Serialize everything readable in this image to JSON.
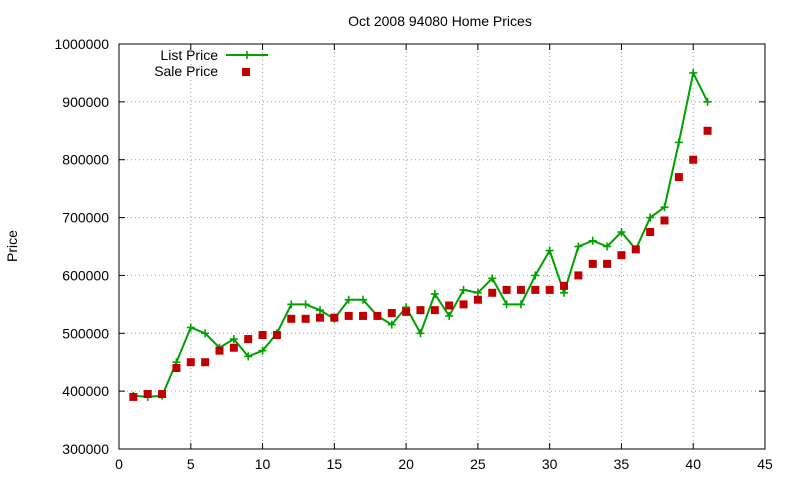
{
  "chart_data": {
    "type": "line",
    "title": "Oct 2008 94080 Home Prices",
    "xlabel": "",
    "ylabel": "Price",
    "xlim": [
      0,
      45
    ],
    "ylim": [
      300000,
      1000000
    ],
    "xticks": [
      0,
      5,
      10,
      15,
      20,
      25,
      30,
      35,
      40,
      45
    ],
    "yticks": [
      300000,
      400000,
      500000,
      600000,
      700000,
      800000,
      900000,
      1000000
    ],
    "grid": true,
    "legend_position": "top-left",
    "x": [
      1,
      2,
      3,
      4,
      5,
      6,
      7,
      8,
      9,
      10,
      11,
      12,
      13,
      14,
      15,
      16,
      17,
      18,
      19,
      20,
      21,
      22,
      23,
      24,
      25,
      26,
      27,
      28,
      29,
      30,
      31,
      32,
      33,
      34,
      35,
      36,
      37,
      38,
      39,
      40,
      41
    ],
    "series": [
      {
        "name": "List Price",
        "style": "linespoints",
        "marker": "plus",
        "color": "#00a000",
        "values": [
          392000,
          390000,
          392000,
          450000,
          510000,
          500000,
          475000,
          490000,
          460000,
          470000,
          500000,
          550000,
          550000,
          540000,
          525000,
          558000,
          558000,
          530000,
          515000,
          545000,
          500000,
          568000,
          530000,
          575000,
          570000,
          595000,
          550000,
          550000,
          600000,
          643000,
          570000,
          650000,
          660000,
          650000,
          675000,
          645000,
          700000,
          718000,
          830000,
          950000,
          900000
        ]
      },
      {
        "name": "Sale Price",
        "style": "points",
        "marker": "square",
        "color": "#c00000",
        "values": [
          390000,
          395000,
          395000,
          440000,
          450000,
          450000,
          470000,
          475000,
          490000,
          497000,
          497000,
          525000,
          525000,
          527000,
          527000,
          530000,
          530000,
          530000,
          535000,
          537000,
          540000,
          540000,
          548000,
          550000,
          558000,
          570000,
          575000,
          575000,
          575000,
          575000,
          582000,
          600000,
          620000,
          620000,
          635000,
          645000,
          675000,
          695000,
          770000,
          800000,
          850000
        ]
      }
    ]
  }
}
